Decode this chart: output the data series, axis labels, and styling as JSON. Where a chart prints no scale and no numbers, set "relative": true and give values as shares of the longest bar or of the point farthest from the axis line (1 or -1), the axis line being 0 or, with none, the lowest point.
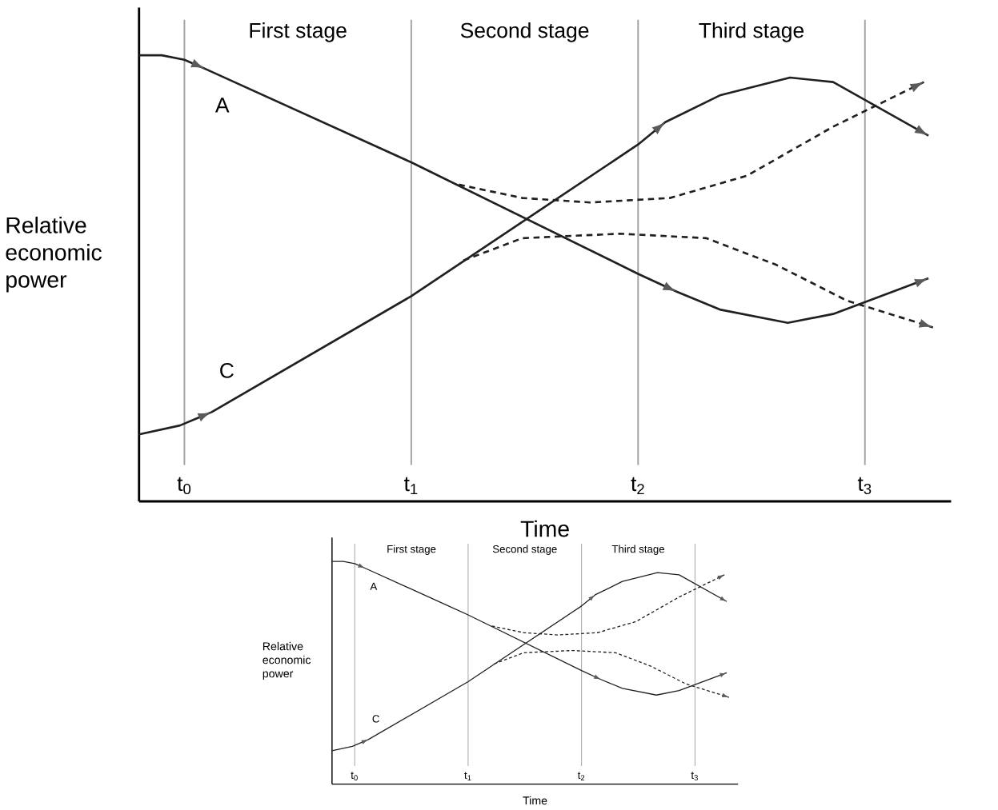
{
  "chart_data": [
    {
      "type": "line",
      "relative": true,
      "xlabel": "Time",
      "ylabel": "Relative economic power",
      "xlim": [
        -0.2,
        3.38
      ],
      "xticks": [
        {
          "value": 0,
          "label": "t$_{0}$"
        },
        {
          "value": 1,
          "label": "t$_{1}$"
        },
        {
          "value": 2,
          "label": "t$_{2}$"
        },
        {
          "value": 3,
          "label": "t$_{3}$"
        }
      ],
      "ref_lines": [
        {
          "axis": "x",
          "value": 0,
          "color": "#a0a0a0"
        },
        {
          "axis": "x",
          "value": 1,
          "color": "#a0a0a0"
        },
        {
          "axis": "x",
          "value": 2,
          "color": "#a0a0a0"
        },
        {
          "axis": "x",
          "value": 3,
          "color": "#a0a0a0"
        }
      ],
      "annotations": [
        "First stage",
        "Second stage",
        "Third stage"
      ],
      "series": [
        {
          "name": "A",
          "color": "#231f20",
          "line_style": "solid",
          "x": [
            -0.2,
            -0.1,
            0,
            0.09,
            1.0,
            2.0,
            2.17,
            2.36,
            2.66,
            2.86,
            3.28
          ],
          "values": [
            1.0,
            1.0,
            0.99,
            0.97,
            0.76,
            0.51,
            0.47,
            0.43,
            0.4,
            0.42,
            0.5
          ]
        },
        {
          "name": "C",
          "color": "#231f20",
          "line_style": "solid",
          "x": [
            -0.2,
            -0.02,
            0.12,
            1.0,
            2.0,
            2.12,
            2.36,
            2.67,
            2.86,
            3.28
          ],
          "values": [
            0.15,
            0.17,
            0.2,
            0.46,
            0.8,
            0.85,
            0.91,
            0.95,
            0.94,
            0.82
          ]
        },
        {
          "color": "#231f20",
          "line_style": "dashed",
          "x": [
            1.21,
            1.49,
            1.79,
            2.14,
            2.48,
            2.86,
            3.26
          ],
          "values": [
            0.71,
            0.68,
            0.67,
            0.68,
            0.73,
            0.84,
            0.94
          ]
        },
        {
          "color": "#231f20",
          "line_style": "dashed",
          "x": [
            1.23,
            1.49,
            1.92,
            2.3,
            2.61,
            2.92,
            3.3
          ],
          "values": [
            0.54,
            0.59,
            0.6,
            0.59,
            0.53,
            0.45,
            0.39
          ]
        }
      ]
    },
    {
      "type": "line",
      "relative": true,
      "xlabel": "Time",
      "ylabel": "Relative economic power",
      "xlim": [
        -0.2,
        3.38
      ],
      "xticks": [
        {
          "value": 0,
          "label": "t$_{0}$"
        },
        {
          "value": 1,
          "label": "t$_{1}$"
        },
        {
          "value": 2,
          "label": "t$_{2}$"
        },
        {
          "value": 3,
          "label": "t$_{3}$"
        }
      ],
      "ref_lines": [
        {
          "axis": "x",
          "value": 0,
          "color": "#a0a0a0"
        },
        {
          "axis": "x",
          "value": 1,
          "color": "#a0a0a0"
        },
        {
          "axis": "x",
          "value": 2,
          "color": "#a0a0a0"
        },
        {
          "axis": "x",
          "value": 3,
          "color": "#a0a0a0"
        }
      ],
      "annotations": [
        "First stage",
        "Second stage",
        "Third stage"
      ],
      "series": [
        {
          "name": "A",
          "color": "#231f20",
          "line_style": "solid",
          "x": [
            -0.2,
            -0.1,
            0,
            0.09,
            1.0,
            2.0,
            2.17,
            2.36,
            2.66,
            2.86,
            3.28
          ],
          "values": [
            1.0,
            1.0,
            0.99,
            0.97,
            0.76,
            0.51,
            0.47,
            0.43,
            0.4,
            0.42,
            0.5
          ]
        },
        {
          "name": "C",
          "color": "#231f20",
          "line_style": "solid",
          "x": [
            -0.2,
            -0.02,
            0.12,
            1.0,
            2.0,
            2.12,
            2.36,
            2.67,
            2.86,
            3.28
          ],
          "values": [
            0.15,
            0.17,
            0.2,
            0.46,
            0.8,
            0.85,
            0.91,
            0.95,
            0.94,
            0.82
          ]
        },
        {
          "color": "#231f20",
          "line_style": "dashed",
          "x": [
            1.21,
            1.49,
            1.79,
            2.14,
            2.48,
            2.86,
            3.26
          ],
          "values": [
            0.71,
            0.68,
            0.67,
            0.68,
            0.73,
            0.84,
            0.94
          ]
        },
        {
          "color": "#231f20",
          "line_style": "dashed",
          "x": [
            1.23,
            1.49,
            1.92,
            2.3,
            2.61,
            2.92,
            3.3
          ],
          "values": [
            0.54,
            0.59,
            0.6,
            0.59,
            0.53,
            0.45,
            0.39
          ]
        }
      ]
    }
  ]
}
